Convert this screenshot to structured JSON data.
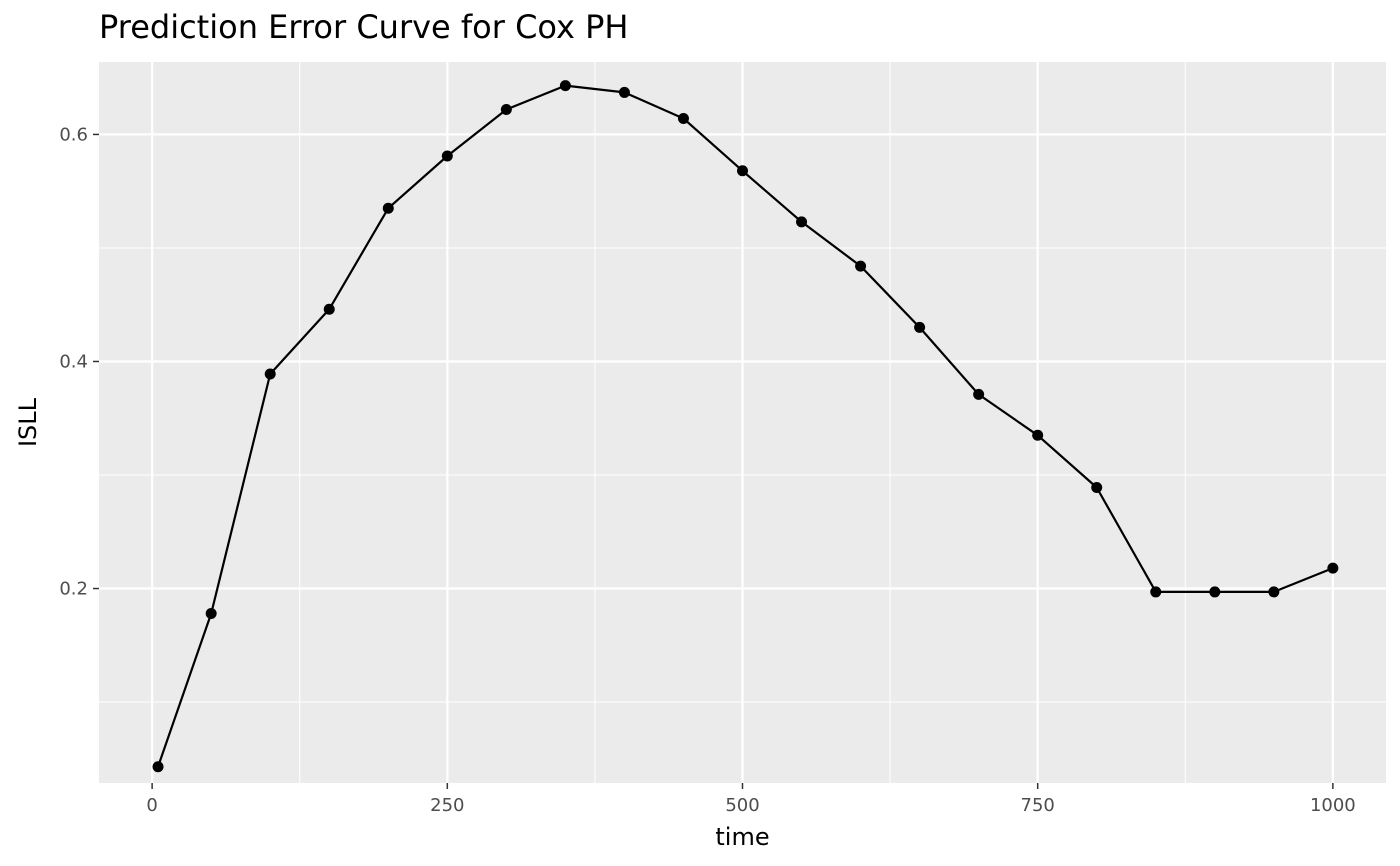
{
  "chart_data": {
    "type": "line",
    "title": "Prediction Error Curve for Cox PH",
    "xlabel": "time",
    "ylabel": "ISLL",
    "xlim": [
      -45,
      1045
    ],
    "ylim": [
      0.0287,
      0.6638
    ],
    "x_ticks": [
      0,
      250,
      500,
      750,
      1000
    ],
    "x_tick_labels": [
      "0",
      "250",
      "500",
      "750",
      "1000"
    ],
    "x_minor_ticks": [
      125,
      375,
      625,
      875
    ],
    "y_ticks": [
      0.2,
      0.4,
      0.6
    ],
    "y_tick_labels": [
      "0.2",
      "0.4",
      "0.6"
    ],
    "y_minor_ticks": [
      0.1,
      0.3,
      0.5
    ],
    "grid": true,
    "legend": "none",
    "colors": {
      "panel": "#ebebeb",
      "grid": "#ffffff",
      "line": "#000000",
      "point": "#000000"
    },
    "series": [
      {
        "x": [
          5,
          50,
          100,
          150,
          200,
          250,
          300,
          350,
          400,
          450,
          500,
          550,
          600,
          650,
          700,
          750,
          800,
          850,
          900,
          950,
          1000
        ],
        "y": [
          0.043,
          0.178,
          0.389,
          0.446,
          0.535,
          0.581,
          0.622,
          0.643,
          0.637,
          0.614,
          0.568,
          0.523,
          0.484,
          0.43,
          0.371,
          0.335,
          0.289,
          0.197,
          0.197,
          0.197,
          0.218
        ]
      }
    ]
  }
}
